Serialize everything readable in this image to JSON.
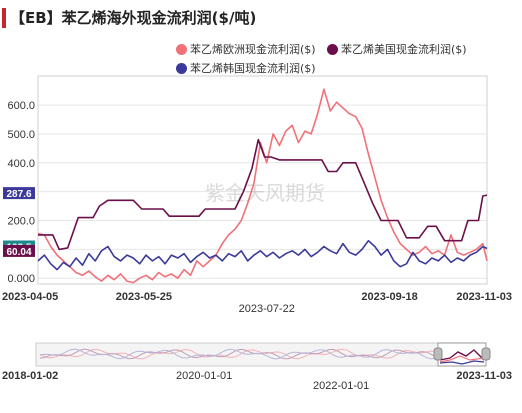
{
  "title": "【EB】苯乙烯海外现金流利润($/吨)",
  "colors": {
    "title_accent": "#c0282d",
    "europe": "#f07178",
    "us": "#6b0f4a",
    "korea": "#3b3a9a",
    "grid": "#e6e6e6",
    "axis_text": "#333333",
    "watermark": "#bbbbbb"
  },
  "watermark": "紫金天风期货",
  "navigator": {
    "start_label": "2018-01-02",
    "mid_labels": [
      "2020-01-01",
      "2022-01-01"
    ],
    "end_label": "2023-11-03"
  },
  "chart_data": {
    "type": "line",
    "title": "【EB】苯乙烯海外现金流利润($/吨)",
    "xlabel": "",
    "ylabel": "",
    "ylim": [
      -20,
      680
    ],
    "yticks": [
      0,
      100,
      200,
      300,
      400,
      500,
      600
    ],
    "ytick_labels": [
      "0.000",
      "100.0",
      "200.0",
      "300.0",
      "400.0",
      "500.0",
      "600.0"
    ],
    "xlim": [
      "2023-04-05",
      "2023-11-03"
    ],
    "xtick_labels_top": [
      "2023-04-05",
      "2023-05-25",
      "2023-09-18",
      "2023-11-03"
    ],
    "xtick_labels_bottom": [
      "2023-07-22"
    ],
    "legend_position": "top-right",
    "last_value_badges": [
      {
        "series": "苯乙烯韩国现金流利润($)",
        "label": "103.5"
      },
      {
        "series": "苯乙烯美国现金流利润($)",
        "label": "287.6"
      },
      {
        "series": "苯乙烯欧洲现金流利润($)",
        "label": "60.04"
      }
    ],
    "series": [
      {
        "name": "苯乙烯欧洲现金流利润($)",
        "color": "#f07178",
        "points": [
          [
            "2023-04-05",
            155
          ],
          [
            "2023-04-08",
            150
          ],
          [
            "2023-04-11",
            110
          ],
          [
            "2023-04-14",
            80
          ],
          [
            "2023-04-17",
            60
          ],
          [
            "2023-04-20",
            40
          ],
          [
            "2023-04-23",
            20
          ],
          [
            "2023-04-26",
            10
          ],
          [
            "2023-04-29",
            25
          ],
          [
            "2023-05-02",
            5
          ],
          [
            "2023-05-05",
            -10
          ],
          [
            "2023-05-08",
            10
          ],
          [
            "2023-05-11",
            -5
          ],
          [
            "2023-05-14",
            15
          ],
          [
            "2023-05-17",
            -10
          ],
          [
            "2023-05-20",
            -15
          ],
          [
            "2023-05-23",
            0
          ],
          [
            "2023-05-26",
            10
          ],
          [
            "2023-05-29",
            -5
          ],
          [
            "2023-06-01",
            20
          ],
          [
            "2023-06-04",
            5
          ],
          [
            "2023-06-07",
            15
          ],
          [
            "2023-06-10",
            0
          ],
          [
            "2023-06-13",
            30
          ],
          [
            "2023-06-16",
            10
          ],
          [
            "2023-06-19",
            60
          ],
          [
            "2023-06-22",
            40
          ],
          [
            "2023-06-25",
            60
          ],
          [
            "2023-06-28",
            80
          ],
          [
            "2023-07-01",
            120
          ],
          [
            "2023-07-04",
            150
          ],
          [
            "2023-07-07",
            170
          ],
          [
            "2023-07-10",
            200
          ],
          [
            "2023-07-13",
            260
          ],
          [
            "2023-07-16",
            330
          ],
          [
            "2023-07-19",
            470
          ],
          [
            "2023-07-22",
            400
          ],
          [
            "2023-07-25",
            500
          ],
          [
            "2023-07-28",
            460
          ],
          [
            "2023-07-31",
            510
          ],
          [
            "2023-08-03",
            530
          ],
          [
            "2023-08-06",
            470
          ],
          [
            "2023-08-09",
            510
          ],
          [
            "2023-08-12",
            500
          ],
          [
            "2023-08-15",
            570
          ],
          [
            "2023-08-18",
            655
          ],
          [
            "2023-08-21",
            580
          ],
          [
            "2023-08-24",
            610
          ],
          [
            "2023-08-27",
            590
          ],
          [
            "2023-08-30",
            570
          ],
          [
            "2023-09-02",
            560
          ],
          [
            "2023-09-05",
            520
          ],
          [
            "2023-09-08",
            430
          ],
          [
            "2023-09-11",
            350
          ],
          [
            "2023-09-14",
            270
          ],
          [
            "2023-09-17",
            210
          ],
          [
            "2023-09-20",
            160
          ],
          [
            "2023-09-23",
            120
          ],
          [
            "2023-09-26",
            100
          ],
          [
            "2023-09-29",
            80
          ],
          [
            "2023-10-02",
            90
          ],
          [
            "2023-10-05",
            110
          ],
          [
            "2023-10-08",
            85
          ],
          [
            "2023-10-11",
            95
          ],
          [
            "2023-10-14",
            80
          ],
          [
            "2023-10-17",
            150
          ],
          [
            "2023-10-20",
            90
          ],
          [
            "2023-10-23",
            80
          ],
          [
            "2023-10-26",
            90
          ],
          [
            "2023-10-29",
            100
          ],
          [
            "2023-11-01",
            120
          ],
          [
            "2023-11-03",
            60
          ]
        ]
      },
      {
        "name": "苯乙烯美国现金流利润($)",
        "color": "#6b0f4a",
        "points": [
          [
            "2023-04-05",
            150
          ],
          [
            "2023-04-12",
            150
          ],
          [
            "2023-04-15",
            100
          ],
          [
            "2023-04-19",
            105
          ],
          [
            "2023-04-24",
            210
          ],
          [
            "2023-05-01",
            210
          ],
          [
            "2023-05-04",
            250
          ],
          [
            "2023-05-08",
            270
          ],
          [
            "2023-05-20",
            270
          ],
          [
            "2023-05-24",
            240
          ],
          [
            "2023-06-03",
            240
          ],
          [
            "2023-06-06",
            215
          ],
          [
            "2023-06-20",
            215
          ],
          [
            "2023-06-23",
            240
          ],
          [
            "2023-07-07",
            240
          ],
          [
            "2023-07-11",
            300
          ],
          [
            "2023-07-15",
            380
          ],
          [
            "2023-07-18",
            480
          ],
          [
            "2023-07-21",
            420
          ],
          [
            "2023-07-24",
            420
          ],
          [
            "2023-07-28",
            410
          ],
          [
            "2023-08-17",
            410
          ],
          [
            "2023-08-20",
            370
          ],
          [
            "2023-08-24",
            370
          ],
          [
            "2023-08-27",
            400
          ],
          [
            "2023-09-02",
            400
          ],
          [
            "2023-09-06",
            330
          ],
          [
            "2023-09-10",
            260
          ],
          [
            "2023-09-14",
            200
          ],
          [
            "2023-09-22",
            200
          ],
          [
            "2023-09-26",
            140
          ],
          [
            "2023-10-02",
            140
          ],
          [
            "2023-10-06",
            180
          ],
          [
            "2023-10-10",
            180
          ],
          [
            "2023-10-14",
            130
          ],
          [
            "2023-10-22",
            130
          ],
          [
            "2023-10-25",
            200
          ],
          [
            "2023-10-30",
            200
          ],
          [
            "2023-11-01",
            285
          ],
          [
            "2023-11-03",
            288
          ]
        ]
      },
      {
        "name": "苯乙烯韩国现金流利润($)",
        "color": "#3b3a9a",
        "points": [
          [
            "2023-04-05",
            60
          ],
          [
            "2023-04-08",
            80
          ],
          [
            "2023-04-11",
            50
          ],
          [
            "2023-04-14",
            30
          ],
          [
            "2023-04-17",
            55
          ],
          [
            "2023-04-20",
            40
          ],
          [
            "2023-04-23",
            70
          ],
          [
            "2023-04-26",
            45
          ],
          [
            "2023-04-29",
            85
          ],
          [
            "2023-05-02",
            60
          ],
          [
            "2023-05-05",
            95
          ],
          [
            "2023-05-08",
            110
          ],
          [
            "2023-05-11",
            75
          ],
          [
            "2023-05-14",
            60
          ],
          [
            "2023-05-17",
            80
          ],
          [
            "2023-05-20",
            70
          ],
          [
            "2023-05-23",
            50
          ],
          [
            "2023-05-26",
            80
          ],
          [
            "2023-05-29",
            60
          ],
          [
            "2023-06-01",
            75
          ],
          [
            "2023-06-04",
            50
          ],
          [
            "2023-06-07",
            80
          ],
          [
            "2023-06-10",
            70
          ],
          [
            "2023-06-13",
            85
          ],
          [
            "2023-06-16",
            55
          ],
          [
            "2023-06-19",
            75
          ],
          [
            "2023-06-22",
            90
          ],
          [
            "2023-06-25",
            70
          ],
          [
            "2023-06-28",
            80
          ],
          [
            "2023-07-01",
            60
          ],
          [
            "2023-07-04",
            85
          ],
          [
            "2023-07-07",
            75
          ],
          [
            "2023-07-10",
            95
          ],
          [
            "2023-07-13",
            60
          ],
          [
            "2023-07-16",
            80
          ],
          [
            "2023-07-19",
            95
          ],
          [
            "2023-07-22",
            75
          ],
          [
            "2023-07-25",
            90
          ],
          [
            "2023-07-28",
            70
          ],
          [
            "2023-07-31",
            85
          ],
          [
            "2023-08-03",
            95
          ],
          [
            "2023-08-06",
            80
          ],
          [
            "2023-08-09",
            100
          ],
          [
            "2023-08-12",
            75
          ],
          [
            "2023-08-15",
            90
          ],
          [
            "2023-08-18",
            110
          ],
          [
            "2023-08-21",
            95
          ],
          [
            "2023-08-24",
            85
          ],
          [
            "2023-08-27",
            120
          ],
          [
            "2023-08-30",
            90
          ],
          [
            "2023-09-02",
            80
          ],
          [
            "2023-09-05",
            100
          ],
          [
            "2023-09-08",
            130
          ],
          [
            "2023-09-11",
            110
          ],
          [
            "2023-09-14",
            80
          ],
          [
            "2023-09-17",
            100
          ],
          [
            "2023-09-20",
            60
          ],
          [
            "2023-09-23",
            40
          ],
          [
            "2023-09-26",
            50
          ],
          [
            "2023-09-29",
            90
          ],
          [
            "2023-10-02",
            60
          ],
          [
            "2023-10-05",
            50
          ],
          [
            "2023-10-08",
            70
          ],
          [
            "2023-10-11",
            60
          ],
          [
            "2023-10-14",
            80
          ],
          [
            "2023-10-17",
            55
          ],
          [
            "2023-10-20",
            70
          ],
          [
            "2023-10-23",
            60
          ],
          [
            "2023-10-26",
            80
          ],
          [
            "2023-10-29",
            90
          ],
          [
            "2023-11-01",
            110
          ],
          [
            "2023-11-03",
            103
          ]
        ]
      }
    ]
  }
}
